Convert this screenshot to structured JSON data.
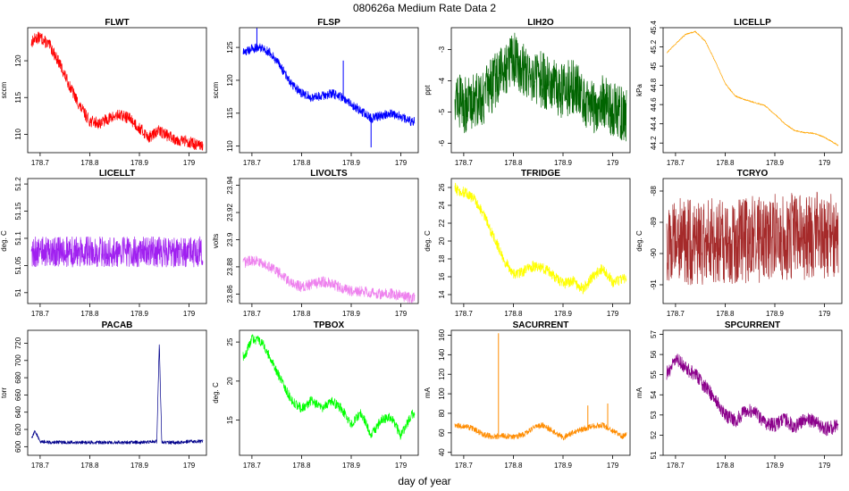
{
  "figure": {
    "title": "080626a   Medium Rate Data 2",
    "xlabel": "day of year"
  },
  "chart_data": [
    {
      "type": "line",
      "title": "FLWT",
      "ylabel": "sccm",
      "color": "#ff0000",
      "xlim": [
        178.675,
        179.035
      ],
      "ylim": [
        107.5,
        124.5
      ],
      "xticks": [
        178.7,
        178.8,
        178.9,
        179.0
      ],
      "yticks": [
        110,
        115,
        120
      ],
      "x": [
        178.675,
        178.69,
        178.7,
        178.72,
        178.74,
        178.76,
        178.78,
        178.8,
        178.82,
        178.84,
        178.86,
        178.88,
        178.9,
        178.92,
        178.94,
        178.96,
        178.98,
        179.0,
        179.02,
        179.035
      ],
      "y": [
        122.0,
        123.0,
        123.2,
        122.0,
        119.5,
        116.5,
        113.8,
        111.8,
        111.5,
        112.2,
        112.6,
        112.2,
        110.8,
        109.6,
        110.5,
        109.7,
        109.2,
        109.0,
        108.4,
        108.3
      ],
      "noise": 0.8
    },
    {
      "type": "line",
      "title": "FLSP",
      "ylabel": "sccm",
      "color": "#0000ff",
      "xlim": [
        178.675,
        179.035
      ],
      "ylim": [
        109,
        128
      ],
      "xticks": [
        178.7,
        178.8,
        178.9,
        179.0
      ],
      "yticks": [
        110,
        115,
        120,
        125
      ],
      "x": [
        178.675,
        178.7,
        178.72,
        178.74,
        178.76,
        178.78,
        178.8,
        178.82,
        178.84,
        178.86,
        178.88,
        178.9,
        178.92,
        178.94,
        178.96,
        178.98,
        179.0,
        179.02,
        179.035
      ],
      "y": [
        124.0,
        124.8,
        125.0,
        124.0,
        121.8,
        119.5,
        118.0,
        117.4,
        117.6,
        118.0,
        117.5,
        116.4,
        115.3,
        114.2,
        114.6,
        115.0,
        114.5,
        113.8,
        113.6
      ],
      "noise": 0.7,
      "spikes": [
        {
          "x": 178.71,
          "y": 128
        },
        {
          "x": 178.884,
          "y": 123
        },
        {
          "x": 178.94,
          "y": 109.8
        }
      ]
    },
    {
      "type": "line",
      "title": "LIH2O",
      "ylabel": "ppt",
      "color": "#006400",
      "xlim": [
        178.675,
        179.035
      ],
      "ylim": [
        -6.3,
        -2.3
      ],
      "xticks": [
        178.7,
        178.8,
        178.9,
        179.0
      ],
      "yticks": [
        -6,
        -5,
        -4,
        -3
      ],
      "x": [
        178.675,
        178.7,
        178.72,
        178.74,
        178.76,
        178.78,
        178.8,
        178.82,
        178.84,
        178.86,
        178.88,
        178.9,
        178.92,
        178.94,
        178.96,
        178.98,
        179.0,
        179.02,
        179.035
      ],
      "y": [
        -4.2,
        -4.8,
        -4.6,
        -4.5,
        -4.1,
        -3.6,
        -3.3,
        -3.6,
        -3.8,
        -4.0,
        -4.2,
        -4.3,
        -4.2,
        -4.5,
        -4.8,
        -4.6,
        -4.9,
        -5.1,
        -5.1
      ],
      "noise": 0.9
    },
    {
      "type": "line",
      "title": "LICELLP",
      "ylabel": "kPa",
      "color": "#ffa500",
      "xlim": [
        178.675,
        179.035
      ],
      "ylim": [
        44.1,
        45.4
      ],
      "xticks": [
        178.7,
        178.8,
        178.9,
        179.0
      ],
      "yticks": [
        44.2,
        44.4,
        44.6,
        44.8,
        45.0,
        45.2,
        45.4
      ],
      "x": [
        178.675,
        178.7,
        178.72,
        178.74,
        178.76,
        178.78,
        178.8,
        178.82,
        178.84,
        178.86,
        178.88,
        178.9,
        178.92,
        178.94,
        178.96,
        178.98,
        179.0,
        179.02,
        179.035
      ],
      "y": [
        45.1,
        45.23,
        45.33,
        45.36,
        45.26,
        45.05,
        44.82,
        44.69,
        44.65,
        44.62,
        44.59,
        44.5,
        44.4,
        44.33,
        44.31,
        44.3,
        44.26,
        44.2,
        44.15
      ],
      "noise": 0.006
    },
    {
      "type": "line",
      "title": "LICELLT",
      "ylabel": "deg. C",
      "color": "#a020f0",
      "xlim": [
        178.675,
        179.035
      ],
      "ylim": [
        50.98,
        51.21
      ],
      "xticks": [
        178.7,
        178.8,
        178.9,
        179.0
      ],
      "yticks": [
        51.0,
        51.05,
        51.1,
        51.15,
        51.2
      ],
      "x": [
        178.675,
        178.7,
        178.8,
        178.9,
        179.0,
        179.035
      ],
      "y": [
        51.075,
        51.075,
        51.075,
        51.075,
        51.075,
        51.075
      ],
      "noise": 0.028
    },
    {
      "type": "line",
      "title": "LIVOLTS",
      "ylabel": "volts",
      "color": "#ee82ee",
      "xlim": [
        178.675,
        179.035
      ],
      "ylim": [
        23.853,
        23.945
      ],
      "xticks": [
        178.7,
        178.8,
        178.9,
        179.0
      ],
      "yticks": [
        23.86,
        23.88,
        23.9,
        23.92,
        23.94
      ],
      "x": [
        178.675,
        178.7,
        178.72,
        178.74,
        178.76,
        178.78,
        178.8,
        178.82,
        178.84,
        178.86,
        178.88,
        178.9,
        178.92,
        178.94,
        178.96,
        178.98,
        179.0,
        179.02,
        179.035
      ],
      "y": [
        23.882,
        23.885,
        23.883,
        23.879,
        23.874,
        23.868,
        23.865,
        23.867,
        23.869,
        23.868,
        23.864,
        23.862,
        23.862,
        23.861,
        23.86,
        23.86,
        23.859,
        23.857,
        23.857
      ],
      "noise": 0.004
    },
    {
      "type": "line",
      "title": "TFRIDGE",
      "ylabel": "deg. C",
      "color": "#ffff00",
      "xlim": [
        178.675,
        179.035
      ],
      "ylim": [
        13,
        27
      ],
      "xticks": [
        178.7,
        178.8,
        178.9,
        179.0
      ],
      "yticks": [
        14,
        16,
        18,
        20,
        22,
        24,
        26
      ],
      "x": [
        178.675,
        178.69,
        178.7,
        178.72,
        178.74,
        178.76,
        178.78,
        178.8,
        178.82,
        178.84,
        178.86,
        178.88,
        178.9,
        178.92,
        178.94,
        178.96,
        178.98,
        179.0,
        179.02,
        179.035
      ],
      "y": [
        26.5,
        25.5,
        25.5,
        24.8,
        23.0,
        20.5,
        18.0,
        16.2,
        16.6,
        17.2,
        17.0,
        16.2,
        15.2,
        15.5,
        14.6,
        16.0,
        17.0,
        15.4,
        15.8,
        15.6
      ],
      "noise": 0.6
    },
    {
      "type": "line",
      "title": "TCRYO",
      "ylabel": "deg. C",
      "color": "#a52a2a",
      "xlim": [
        178.675,
        179.035
      ],
      "ylim": [
        -91.6,
        -87.6
      ],
      "xticks": [
        178.7,
        178.8,
        178.9,
        179.0
      ],
      "yticks": [
        -91,
        -90,
        -89,
        -88
      ],
      "x": [
        178.675,
        178.7,
        178.8,
        178.9,
        179.0,
        179.035
      ],
      "y": [
        -89.7,
        -89.6,
        -89.6,
        -89.5,
        -89.4,
        -89.4
      ],
      "noise": 1.4
    },
    {
      "type": "line",
      "title": "PACAB",
      "ylabel": "torr",
      "color": "#00008b",
      "xlim": [
        178.675,
        179.035
      ],
      "ylim": [
        590,
        735
      ],
      "xticks": [
        178.7,
        178.8,
        178.9,
        179.0
      ],
      "yticks": [
        600,
        620,
        640,
        660,
        680,
        700,
        720
      ],
      "x": [
        178.675,
        178.68,
        178.69,
        178.7,
        178.72,
        178.76,
        178.8,
        178.85,
        178.9,
        178.935,
        178.94,
        178.945,
        178.95,
        178.98,
        179.0,
        179.035
      ],
      "y": [
        606,
        608,
        618,
        606,
        605,
        605,
        605,
        605,
        605,
        606,
        720,
        606,
        605,
        605,
        606,
        606
      ],
      "noise": 2
    },
    {
      "type": "line",
      "title": "TPBOX",
      "ylabel": "deg. C",
      "color": "#00ff00",
      "xlim": [
        178.675,
        179.035
      ],
      "ylim": [
        10.5,
        26.5
      ],
      "xticks": [
        178.7,
        178.8,
        178.9,
        179.0
      ],
      "yticks": [
        15,
        20,
        25
      ],
      "x": [
        178.675,
        178.685,
        178.7,
        178.72,
        178.74,
        178.76,
        178.78,
        178.8,
        178.82,
        178.84,
        178.86,
        178.88,
        178.9,
        178.92,
        178.94,
        178.96,
        178.98,
        179.0,
        179.02,
        179.035
      ],
      "y": [
        24.0,
        23.0,
        25.5,
        25.0,
        22.5,
        20.0,
        17.5,
        16.5,
        17.5,
        16.5,
        17.5,
        16.5,
        14.5,
        16.0,
        13.0,
        15.0,
        15.5,
        13.0,
        15.5,
        16.5
      ],
      "noise": 0.6
    },
    {
      "type": "line",
      "title": "SACURRENT",
      "ylabel": "mA",
      "color": "#ff8c00",
      "xlim": [
        178.675,
        179.035
      ],
      "ylim": [
        37,
        165
      ],
      "xticks": [
        178.7,
        178.8,
        178.9,
        179.0
      ],
      "yticks": [
        40,
        60,
        80,
        100,
        120,
        140,
        160
      ],
      "x": [
        178.675,
        178.7,
        178.72,
        178.74,
        178.76,
        178.78,
        178.8,
        178.82,
        178.84,
        178.86,
        178.88,
        178.9,
        178.92,
        178.94,
        178.96,
        178.98,
        179.0,
        179.02,
        179.035
      ],
      "y": [
        67,
        67,
        64,
        58,
        56,
        57,
        56,
        58,
        65,
        68,
        62,
        55,
        60,
        64,
        67,
        68,
        62,
        56,
        60
      ],
      "noise": 3,
      "spikes": [
        {
          "x": 178.77,
          "y": 162
        },
        {
          "x": 178.95,
          "y": 88
        },
        {
          "x": 178.99,
          "y": 90
        }
      ]
    },
    {
      "type": "line",
      "title": "SPCURRENT",
      "ylabel": "mA",
      "color": "#8b008b",
      "xlim": [
        178.675,
        179.035
      ],
      "ylim": [
        51,
        57.2
      ],
      "xticks": [
        178.7,
        178.8,
        178.9,
        179.0
      ],
      "yticks": [
        51,
        52,
        53,
        54,
        55,
        56,
        57
      ],
      "x": [
        178.675,
        178.69,
        178.7,
        178.72,
        178.74,
        178.76,
        178.78,
        178.8,
        178.82,
        178.84,
        178.86,
        178.88,
        178.9,
        178.92,
        178.94,
        178.96,
        178.98,
        179.0,
        179.02,
        179.035
      ],
      "y": [
        55.0,
        55.2,
        55.9,
        55.3,
        55.0,
        54.4,
        53.8,
        53.0,
        52.7,
        53.2,
        53.2,
        52.6,
        52.5,
        52.8,
        52.4,
        52.8,
        52.7,
        52.3,
        52.4,
        52.5
      ],
      "noise": 0.35
    }
  ]
}
